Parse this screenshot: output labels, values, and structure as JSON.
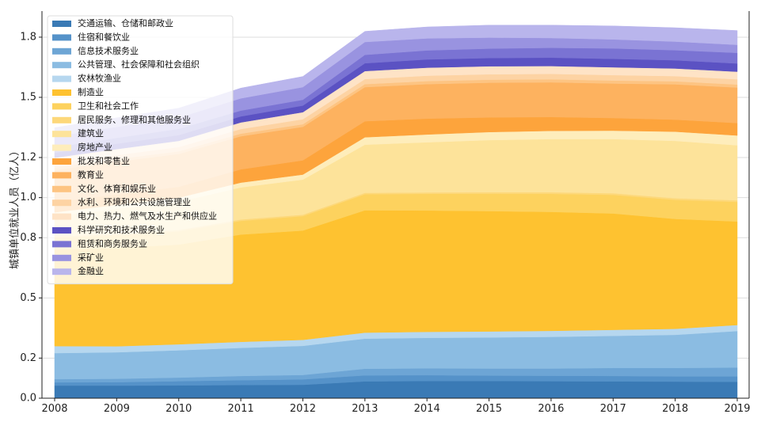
{
  "chart_data": {
    "type": "area",
    "stacked": true,
    "title": "",
    "xlabel": "",
    "ylabel": "城镇单位就业人员（亿人）",
    "x": [
      2008,
      2009,
      2010,
      2011,
      2012,
      2013,
      2014,
      2015,
      2016,
      2017,
      2018,
      2019
    ],
    "ylim": [
      0,
      1.93
    ],
    "yticks": [
      0.0,
      0.2,
      0.5,
      0.8,
      1.0,
      1.2,
      1.5,
      1.8
    ],
    "ytick_labels": [
      "0.0",
      "0.2",
      "0.5",
      "0.8",
      "1.0",
      "1.2",
      "1.5",
      "1.8"
    ],
    "grid": true,
    "legend_position": "top-left",
    "series": [
      {
        "name": "交通运输、仓储和邮政业",
        "color": "#3a7ab5",
        "values": [
          0.063,
          0.063,
          0.064,
          0.066,
          0.067,
          0.084,
          0.086,
          0.086,
          0.085,
          0.084,
          0.083,
          0.082
        ]
      },
      {
        "name": "住宿和餐饮业",
        "color": "#5592c9",
        "values": [
          0.016,
          0.017,
          0.021,
          0.024,
          0.027,
          0.03,
          0.029,
          0.027,
          0.027,
          0.027,
          0.026,
          0.027
        ]
      },
      {
        "name": "信息技术服务业",
        "color": "#6da5d5",
        "values": [
          0.016,
          0.017,
          0.018,
          0.021,
          0.022,
          0.033,
          0.034,
          0.035,
          0.036,
          0.04,
          0.042,
          0.044
        ]
      },
      {
        "name": "公共管理、社会保障和社会组织",
        "color": "#8bbce2",
        "values": [
          0.13,
          0.132,
          0.136,
          0.14,
          0.145,
          0.15,
          0.152,
          0.155,
          0.158,
          0.16,
          0.165,
          0.182
        ]
      },
      {
        "name": "农林牧渔业",
        "color": "#b6d7ef",
        "values": [
          0.035,
          0.03,
          0.03,
          0.03,
          0.03,
          0.03,
          0.03,
          0.03,
          0.03,
          0.03,
          0.03,
          0.03
        ]
      },
      {
        "name": "制造业",
        "color": "#fec230",
        "values": [
          0.48,
          0.49,
          0.497,
          0.535,
          0.545,
          0.61,
          0.605,
          0.6,
          0.593,
          0.58,
          0.548,
          0.516
        ]
      },
      {
        "name": "卫生和社会工作",
        "color": "#fdd25e",
        "values": [
          0.06,
          0.063,
          0.066,
          0.068,
          0.072,
          0.08,
          0.083,
          0.087,
          0.09,
          0.093,
          0.095,
          0.098
        ]
      },
      {
        "name": "居民服务、修理和其他服务业",
        "color": "#fdd87a",
        "values": [
          0.007,
          0.007,
          0.007,
          0.007,
          0.007,
          0.007,
          0.007,
          0.007,
          0.008,
          0.008,
          0.008,
          0.008
        ]
      },
      {
        "name": "建筑业",
        "color": "#fde39a",
        "values": [
          0.1,
          0.125,
          0.14,
          0.16,
          0.175,
          0.24,
          0.25,
          0.26,
          0.265,
          0.27,
          0.286,
          0.274
        ]
      },
      {
        "name": "房地产业",
        "color": "#feedbb",
        "values": [
          0.02,
          0.02,
          0.021,
          0.024,
          0.025,
          0.037,
          0.039,
          0.04,
          0.041,
          0.042,
          0.046,
          0.049
        ]
      },
      {
        "name": "批发和零售业",
        "color": "#fda43c",
        "values": [
          0.051,
          0.052,
          0.054,
          0.066,
          0.071,
          0.08,
          0.079,
          0.073,
          0.069,
          0.063,
          0.06,
          0.062
        ]
      },
      {
        "name": "教育业",
        "color": "#fdb25f",
        "values": [
          0.16,
          0.163,
          0.164,
          0.165,
          0.167,
          0.17,
          0.172,
          0.173,
          0.173,
          0.172,
          0.176,
          0.177
        ]
      },
      {
        "name": "文化、体育和娱乐业",
        "color": "#fdc482",
        "values": [
          0.012,
          0.013,
          0.013,
          0.013,
          0.013,
          0.015,
          0.015,
          0.015,
          0.015,
          0.015,
          0.015,
          0.015
        ]
      },
      {
        "name": "水利、环境和公共设施管理业",
        "color": "#fdd3a3",
        "values": [
          0.019,
          0.02,
          0.021,
          0.023,
          0.025,
          0.025,
          0.027,
          0.027,
          0.027,
          0.027,
          0.026,
          0.026
        ]
      },
      {
        "name": "电力、热力、燃气及水生产和供应业",
        "color": "#fee3c6",
        "values": [
          0.03,
          0.03,
          0.031,
          0.033,
          0.035,
          0.04,
          0.04,
          0.04,
          0.039,
          0.039,
          0.038,
          0.038
        ]
      },
      {
        "name": "科学研究和技术服务业",
        "color": "#5b52c3",
        "values": [
          0.025,
          0.027,
          0.029,
          0.03,
          0.033,
          0.039,
          0.041,
          0.041,
          0.042,
          0.042,
          0.041,
          0.041
        ]
      },
      {
        "name": "租赁和商务服务业",
        "color": "#7a73d3",
        "values": [
          0.027,
          0.029,
          0.031,
          0.029,
          0.029,
          0.042,
          0.045,
          0.047,
          0.049,
          0.052,
          0.05,
          0.053
        ]
      },
      {
        "name": "采矿业",
        "color": "#9993e0",
        "values": [
          0.054,
          0.055,
          0.056,
          0.061,
          0.063,
          0.064,
          0.06,
          0.055,
          0.049,
          0.045,
          0.043,
          0.04
        ]
      },
      {
        "name": "金融业",
        "color": "#b9b5ec",
        "values": [
          0.044,
          0.045,
          0.047,
          0.051,
          0.053,
          0.053,
          0.057,
          0.062,
          0.064,
          0.067,
          0.069,
          0.071
        ]
      }
    ]
  }
}
